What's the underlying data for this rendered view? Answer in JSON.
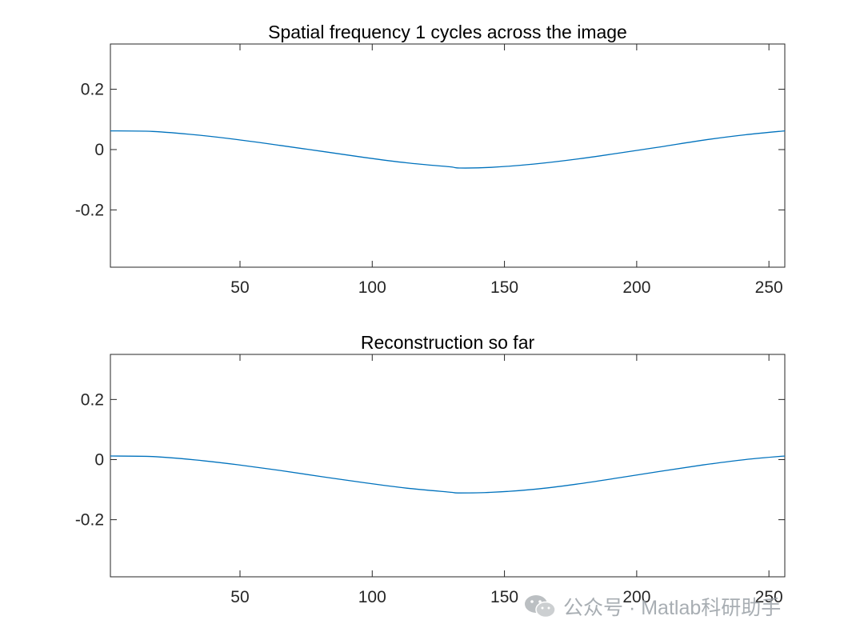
{
  "chart_data": [
    {
      "type": "line",
      "title": "Spatial frequency 1 cycles across the image",
      "xlabel": "",
      "ylabel": "",
      "xlim": [
        1,
        256
      ],
      "ylim": [
        -0.39,
        0.35
      ],
      "xticks": [
        50,
        100,
        150,
        200,
        250
      ],
      "xtick_labels": [
        "50",
        "100",
        "150",
        "200",
        "250"
      ],
      "yticks": [
        0.2,
        0,
        -0.2
      ],
      "ytick_labels": [
        "0.2",
        "0",
        "-0.2"
      ],
      "grid": false,
      "series": [
        {
          "color": "#0072bd",
          "x": [
            1,
            17,
            33,
            49,
            65,
            81,
            97,
            113,
            129,
            133,
            145,
            161,
            177,
            193,
            209,
            225,
            241,
            256
          ],
          "y": [
            0.062,
            0.06,
            0.049,
            0.033,
            0.014,
            -0.006,
            -0.026,
            -0.044,
            -0.057,
            -0.061,
            -0.059,
            -0.048,
            -0.032,
            -0.012,
            0.009,
            0.031,
            0.049,
            0.062
          ]
        }
      ]
    },
    {
      "type": "line",
      "title": "Reconstruction so far",
      "xlabel": "",
      "ylabel": "",
      "xlim": [
        1,
        256
      ],
      "ylim": [
        -0.39,
        0.35
      ],
      "xticks": [
        50,
        100,
        150,
        200,
        250
      ],
      "xtick_labels": [
        "50",
        "100",
        "150",
        "200",
        "250"
      ],
      "yticks": [
        0.2,
        0,
        -0.2
      ],
      "ytick_labels": [
        "0.2",
        "0",
        "-0.2"
      ],
      "grid": false,
      "series": [
        {
          "color": "#0072bd",
          "x": [
            1,
            17,
            33,
            49,
            65,
            81,
            97,
            113,
            129,
            133,
            145,
            161,
            177,
            193,
            209,
            225,
            241,
            256
          ],
          "y": [
            0.012,
            0.01,
            -0.001,
            -0.017,
            -0.036,
            -0.057,
            -0.077,
            -0.095,
            -0.108,
            -0.111,
            -0.109,
            -0.099,
            -0.082,
            -0.061,
            -0.039,
            -0.018,
            0.0,
            0.012
          ]
        }
      ]
    }
  ],
  "watermark": {
    "text": "公众号 · Matlab科研助手",
    "icon": "wechat-icon"
  }
}
